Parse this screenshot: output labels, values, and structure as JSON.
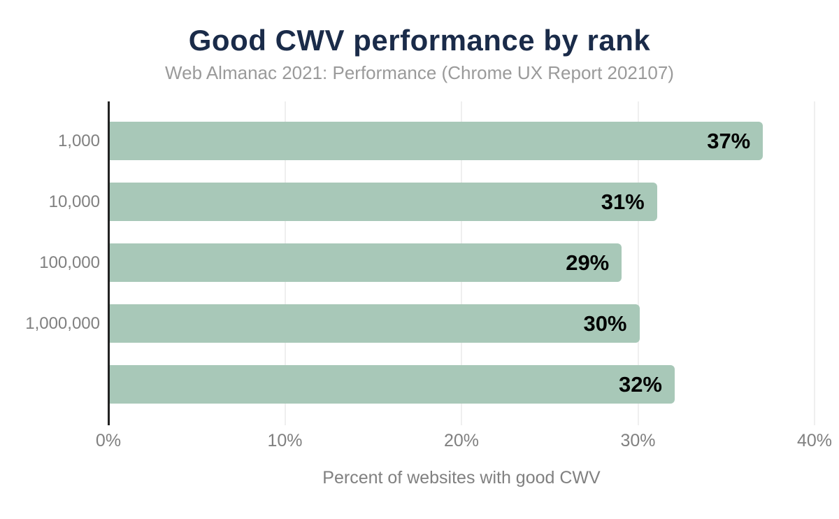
{
  "header": {
    "title": "Good CWV performance by rank",
    "subtitle": "Web Almanac 2021: Performance (Chrome UX Report 202107)"
  },
  "chart_data": {
    "type": "bar",
    "orientation": "horizontal",
    "title": "Good CWV performance by rank",
    "subtitle": "Web Almanac 2021: Performance (Chrome UX Report 202107)",
    "categories": [
      "1,000",
      "10,000",
      "100,000",
      "1,000,000",
      ""
    ],
    "values": [
      37,
      31,
      29,
      30,
      32
    ],
    "value_labels": [
      "37%",
      "31%",
      "29%",
      "30%",
      "32%"
    ],
    "xlabel": "Percent of websites with good CWV",
    "ylabel": "",
    "xlim": [
      0,
      40
    ],
    "x_ticks": [
      0,
      10,
      20,
      30,
      40
    ],
    "x_tick_labels": [
      "0%",
      "10%",
      "20%",
      "30%",
      "40%"
    ],
    "grid": "vertical",
    "legend": "none"
  },
  "colors": {
    "title": "#1a2b49",
    "subtitle": "#9a9a9a",
    "bar_fill": "#a8c8b8",
    "bar_value_label": "#000000",
    "axis_text": "#808080",
    "axis_line": "#222222",
    "gridline": "#efefef",
    "background": "#ffffff"
  }
}
